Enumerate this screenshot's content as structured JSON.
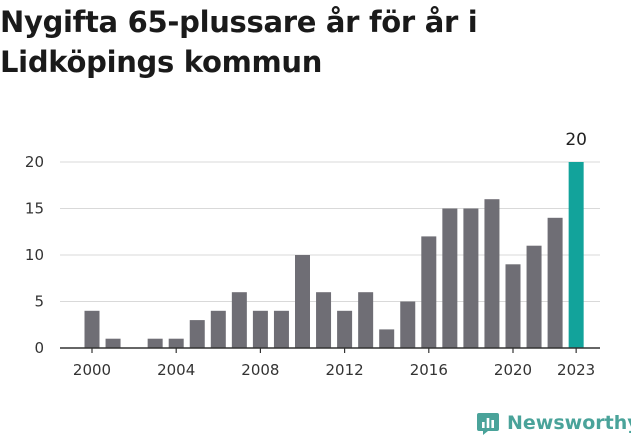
{
  "title": "Nygifta 65-plussare år för år i Lidköpings kommun",
  "brand": {
    "name": "Newsworthy",
    "icon": "newsworthy-chart-icon"
  },
  "colors": {
    "bar": "#6f6e75",
    "highlight": "#12a39b",
    "grid": "#d9d9d9",
    "axis": "#333333",
    "brand": "#4aa39a"
  },
  "chart_data": {
    "type": "bar",
    "title": "Nygifta 65-plussare år för år i Lidköpings kommun",
    "xlabel": "",
    "ylabel": "",
    "x": [
      2000,
      2001,
      2002,
      2003,
      2004,
      2005,
      2006,
      2007,
      2008,
      2009,
      2010,
      2011,
      2012,
      2013,
      2014,
      2015,
      2016,
      2017,
      2018,
      2019,
      2020,
      2021,
      2022,
      2023
    ],
    "values": [
      4,
      1,
      0,
      1,
      1,
      3,
      4,
      6,
      4,
      4,
      10,
      6,
      4,
      6,
      2,
      5,
      12,
      15,
      15,
      16,
      9,
      11,
      14,
      20
    ],
    "ylim": [
      0,
      20
    ],
    "yticks": [
      0,
      5,
      10,
      15,
      20
    ],
    "ytick_labels": [
      "0",
      "5",
      "10",
      "15",
      "20"
    ],
    "xticks": [
      2000,
      2004,
      2008,
      2012,
      2016,
      2020,
      2023
    ],
    "xtick_labels": [
      "2000",
      "2004",
      "2008",
      "2012",
      "2016",
      "2020",
      "2023"
    ],
    "highlight": {
      "x": 2023,
      "label": "20"
    },
    "grid": true,
    "legend": "none"
  }
}
